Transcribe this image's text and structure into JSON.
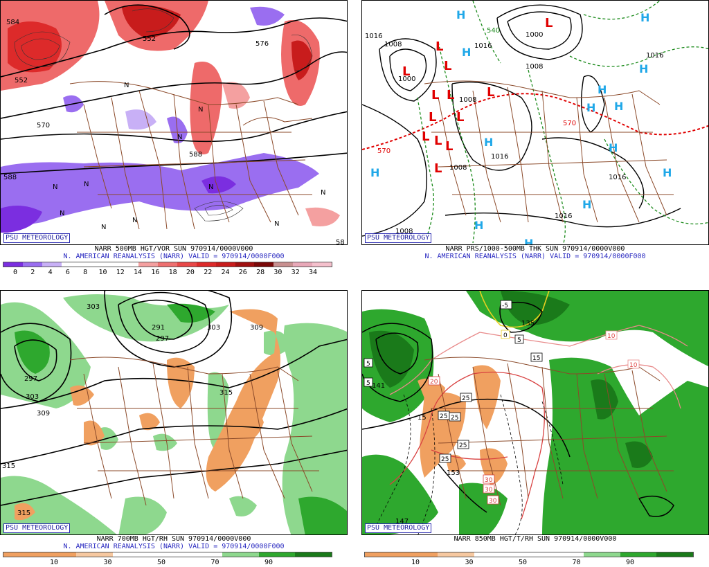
{
  "panels": [
    {
      "brand": "PSU METEOROLOGY",
      "caption1": "NARR 500MB HGT/VOR SUN 970914/0000V000",
      "caption2": "N. AMERICAN REANALYSIS (NARR) VALID = 970914/0000F000",
      "colorbar": [
        "#7b2ee0",
        "#9a6ef0",
        "#c8b0f6",
        "#ffffff",
        "#ffffff",
        "#ffffff",
        "#ffffff",
        "#f4a0a0",
        "#ee7070",
        "#e84848",
        "#dd2a2a",
        "#c81c1c",
        "#a01010",
        "#7a0808",
        "#c89090",
        "#e8a8b8",
        "#f4c0cc"
      ],
      "ticks": [
        "0",
        "2",
        "4",
        "6",
        "8",
        "10",
        "12",
        "14",
        "16",
        "18",
        "20",
        "22",
        "24",
        "26",
        "28",
        "30",
        "32",
        "34"
      ],
      "map_labels": [
        "584",
        "552",
        "552",
        "570",
        "576",
        "588",
        "588",
        "N",
        "N",
        "N",
        "N",
        "N",
        "N",
        "N",
        "N",
        "N",
        "N",
        "N",
        "58"
      ]
    },
    {
      "brand": "PSU METEOROLOGY",
      "caption1": "NARR PRS/1000-500MB THK SUN 970914/0000V000",
      "caption2": "N. AMERICAN REANALYSIS (NARR) VALID = 970914/0000F000",
      "map_labels": [
        "1016",
        "1008",
        "1000",
        "1000",
        "1016",
        "1008",
        "1008",
        "1016",
        "1016",
        "1008",
        "1016",
        "1016",
        "1008",
        "570",
        "570",
        "540"
      ],
      "lows": [
        "L",
        "L",
        "L",
        "L",
        "L",
        "L",
        "L",
        "L",
        "L",
        "L",
        "L",
        "L",
        "L"
      ],
      "highs": [
        "H",
        "H",
        "H",
        "H",
        "H",
        "H",
        "H",
        "H",
        "H",
        "H",
        "H",
        "H",
        "H",
        "H"
      ]
    },
    {
      "brand": "PSU METEOROLOGY",
      "caption1": "NARR 700MB HGT/RH SUN 970914/0000V000",
      "caption2": "N. AMERICAN REANALYSIS (NARR) VALID = 970914/0000F000",
      "colorbar": [
        "#f0a060",
        "#f0a060",
        "#f6c8a0",
        "#ffffff",
        "#ffffff",
        "#ffffff",
        "#8ed88e",
        "#2ea82e",
        "#1a7a1a"
      ],
      "ticks": [
        "10",
        "30",
        "50",
        "70",
        "90"
      ],
      "map_labels": [
        "303",
        "291",
        "297",
        "303",
        "309",
        "297",
        "303",
        "309",
        "315",
        "315",
        "315"
      ]
    },
    {
      "brand": "PSU METEOROLOGY",
      "caption1": "NARR 850MB HGT/T/RH SUN 970914/0000V000",
      "caption2": "",
      "colorbar": [
        "#f0a060",
        "#f0a060",
        "#f6c8a0",
        "#ffffff",
        "#ffffff",
        "#ffffff",
        "#8ed88e",
        "#2ea82e",
        "#1a7a1a"
      ],
      "ticks": [
        "10",
        "30",
        "50",
        "70",
        "90"
      ],
      "map_labels": [
        "-5",
        "135",
        "0",
        "5",
        "15",
        "10",
        "10",
        "5",
        "5",
        "141",
        "20",
        "25",
        "25",
        "25",
        "15",
        "25",
        "25",
        "153",
        "30",
        "30",
        "30",
        "147"
      ]
    }
  ]
}
